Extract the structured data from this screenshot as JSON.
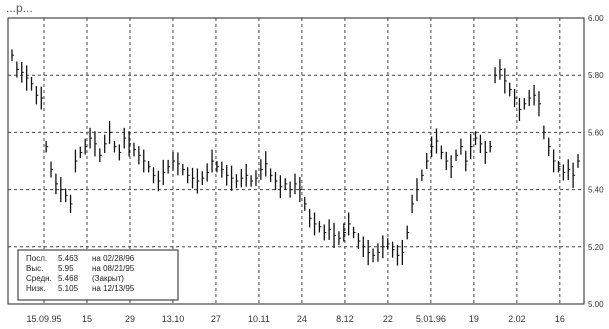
{
  "chart_data": {
    "type": "bar",
    "title": "",
    "title_partial": "...р...",
    "ylim": [
      5.0,
      6.0
    ],
    "y_ticks": [
      "5.00",
      "5.20",
      "5.40",
      "5.60",
      "5.80",
      "6.00"
    ],
    "x_tick_labels": [
      "15.09.95",
      "15",
      "29",
      "13.10",
      "27",
      "10.11",
      "24",
      "8.12",
      "22",
      "5.01.96",
      "19",
      "2.02",
      "16"
    ],
    "grid": true,
    "legend_placement": "bottom-left",
    "legend": {
      "rows": [
        {
          "label": "Посл.",
          "value": "5.463",
          "note": "на 02/28/96"
        },
        {
          "label": "Выс.",
          "value": "5.95",
          "note": "на 08/21/95"
        },
        {
          "label": "Средн.",
          "value": "5.468",
          "note": "(Закрыт)"
        },
        {
          "label": "Низк.",
          "value": "5.105",
          "note": "на 12/13/95"
        }
      ]
    },
    "series": [
      {
        "values": [
          5.87,
          5.82,
          5.81,
          5.79,
          5.77,
          5.73,
          5.72,
          5.55,
          5.47,
          5.42,
          5.4,
          5.38,
          5.35,
          5.5,
          5.53,
          5.55,
          5.58,
          5.56,
          5.52,
          5.56,
          5.6,
          5.55,
          5.53,
          5.58,
          5.56,
          5.54,
          5.52,
          5.5,
          5.48,
          5.45,
          5.43,
          5.46,
          5.48,
          5.5,
          5.49,
          5.47,
          5.45,
          5.44,
          5.43,
          5.44,
          5.46,
          5.5,
          5.48,
          5.47,
          5.45,
          5.44,
          5.43,
          5.44,
          5.45,
          5.43,
          5.44,
          5.47,
          5.49,
          5.45,
          5.43,
          5.41,
          5.42,
          5.4,
          5.42,
          5.4,
          5.35,
          5.3,
          5.28,
          5.27,
          5.25,
          5.26,
          5.24,
          5.23,
          5.25,
          5.28,
          5.25,
          5.22,
          5.2,
          5.18,
          5.17,
          5.18,
          5.2,
          5.21,
          5.19,
          5.17,
          5.18,
          5.25,
          5.35,
          5.4,
          5.45,
          5.5,
          5.55,
          5.57,
          5.53,
          5.5,
          5.48,
          5.52,
          5.55,
          5.5,
          5.55,
          5.58,
          5.56,
          5.53,
          5.55,
          5.8,
          5.82,
          5.78,
          5.75,
          5.72,
          5.68,
          5.7,
          5.72,
          5.73,
          5.7,
          5.6,
          5.55,
          5.5,
          5.48,
          5.46,
          5.47,
          5.45,
          5.5
        ]
      }
    ]
  }
}
